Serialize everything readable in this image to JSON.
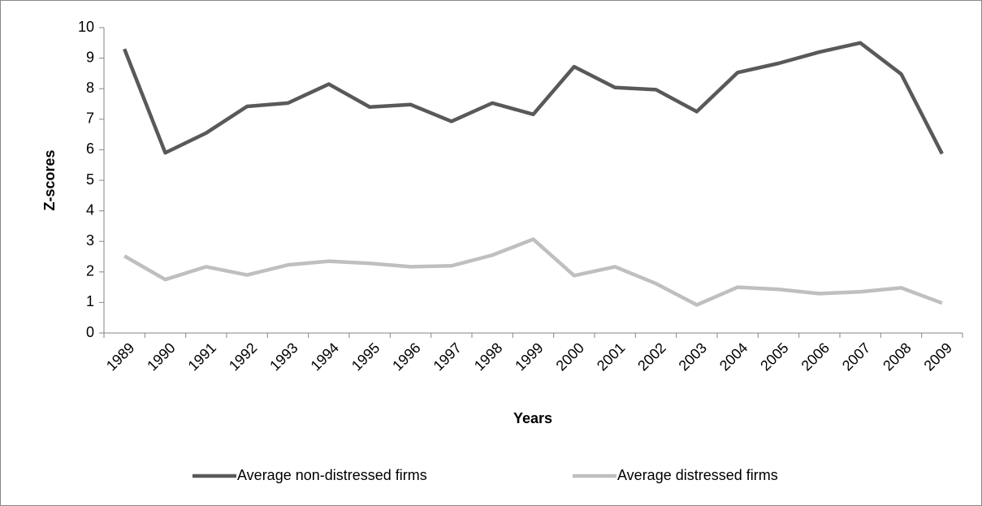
{
  "chart_data": {
    "type": "line",
    "categories": [
      "1989",
      "1990",
      "1991",
      "1992",
      "1993",
      "1994",
      "1995",
      "1996",
      "1997",
      "1998",
      "1999",
      "2000",
      "2001",
      "2002",
      "2003",
      "2004",
      "2005",
      "2006",
      "2007",
      "2008",
      "2009"
    ],
    "series": [
      {
        "name": "Average non-distressed firms",
        "color": "#595959",
        "values": [
          9.3,
          5.9,
          6.55,
          7.42,
          7.53,
          8.15,
          7.4,
          7.48,
          6.93,
          7.53,
          7.16,
          8.72,
          8.04,
          7.97,
          7.25,
          8.53,
          8.83,
          9.2,
          9.5,
          8.48,
          5.87
        ]
      },
      {
        "name": "Average distressed firms",
        "color": "#bfbfbf",
        "values": [
          2.52,
          1.75,
          2.17,
          1.9,
          2.23,
          2.35,
          2.28,
          2.17,
          2.2,
          2.55,
          3.07,
          1.88,
          2.17,
          1.62,
          0.92,
          1.5,
          1.43,
          1.29,
          1.35,
          1.48,
          0.98
        ]
      }
    ],
    "x_label": "Years",
    "y_label": "Z-scores",
    "ylim": [
      0,
      10
    ],
    "yticks": [
      0,
      1,
      2,
      3,
      4,
      5,
      6,
      7,
      8,
      9,
      10
    ],
    "grid": false,
    "legend": "bottom"
  }
}
